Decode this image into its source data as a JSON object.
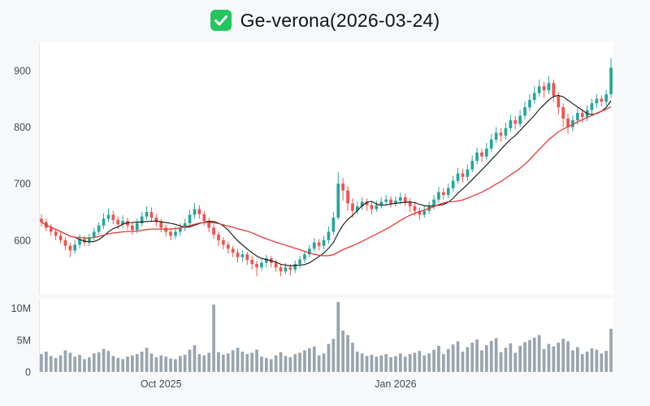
{
  "header": {
    "title": "Ge-verona(2026-03-24)",
    "check_color": "#22c55e",
    "check_mark_color": "#ffffff"
  },
  "chart_data": {
    "type": "candlestick",
    "title": "Ge-verona(2026-03-24)",
    "up_color": "#26a69a",
    "down_color": "#ef5350",
    "ma_short_color": "#111111",
    "ma_long_color": "#e53935",
    "ma_short_period": 8,
    "ma_long_period": 24,
    "volume_color": "#9aa4ae",
    "grid": false,
    "legend": "none",
    "y_axis": {
      "ticks": [
        600,
        700,
        800,
        900
      ],
      "range": [
        505,
        950
      ]
    },
    "volume_axis": {
      "max": 11.5,
      "unit": "M",
      "ticks": [
        {
          "value": 0,
          "label": "0"
        },
        {
          "value": 5,
          "label": "5M"
        },
        {
          "value": 10,
          "label": "10M"
        }
      ]
    },
    "x_axis": {
      "labels": [
        {
          "index": 25,
          "label": "Oct 2025"
        },
        {
          "index": 74,
          "label": "Jan 2026"
        }
      ]
    },
    "candles_format": [
      "open",
      "high",
      "low",
      "close",
      "volume_millions"
    ],
    "candles": [
      [
        638,
        646,
        624,
        632,
        2.8
      ],
      [
        632,
        638,
        616,
        622,
        3.2
      ],
      [
        622,
        628,
        608,
        615,
        2.5
      ],
      [
        615,
        620,
        600,
        608,
        2.2
      ],
      [
        608,
        614,
        594,
        600,
        2.6
      ],
      [
        600,
        606,
        582,
        590,
        3.4
      ],
      [
        590,
        596,
        570,
        582,
        3.0
      ],
      [
        582,
        600,
        576,
        592,
        2.4
      ],
      [
        592,
        610,
        586,
        602,
        2.7
      ],
      [
        602,
        608,
        590,
        596,
        2.0
      ],
      [
        596,
        612,
        590,
        605,
        2.3
      ],
      [
        605,
        622,
        600,
        615,
        2.9
      ],
      [
        615,
        632,
        610,
        626,
        3.1
      ],
      [
        626,
        648,
        620,
        638,
        3.6
      ],
      [
        638,
        656,
        632,
        645,
        3.3
      ],
      [
        645,
        652,
        628,
        636,
        2.5
      ],
      [
        636,
        642,
        620,
        628,
        2.2
      ],
      [
        628,
        644,
        622,
        634,
        2.0
      ],
      [
        634,
        640,
        618,
        626,
        2.4
      ],
      [
        626,
        632,
        610,
        618,
        2.6
      ],
      [
        618,
        638,
        612,
        630,
        2.8
      ],
      [
        630,
        650,
        624,
        642,
        3.2
      ],
      [
        642,
        660,
        636,
        650,
        3.8
      ],
      [
        650,
        658,
        632,
        640,
        2.9
      ],
      [
        640,
        646,
        624,
        632,
        2.3
      ],
      [
        632,
        638,
        614,
        622,
        2.6
      ],
      [
        622,
        628,
        606,
        615,
        2.4
      ],
      [
        615,
        622,
        600,
        608,
        2.1
      ],
      [
        608,
        624,
        602,
        615,
        2.0
      ],
      [
        615,
        630,
        608,
        622,
        2.5
      ],
      [
        622,
        638,
        616,
        630,
        2.7
      ],
      [
        630,
        654,
        624,
        645,
        3.5
      ],
      [
        645,
        666,
        638,
        655,
        4.2
      ],
      [
        655,
        662,
        638,
        646,
        2.8
      ],
      [
        646,
        652,
        626,
        634,
        2.6
      ],
      [
        634,
        640,
        614,
        622,
        3.0
      ],
      [
        622,
        628,
        602,
        610,
        10.6
      ],
      [
        610,
        616,
        590,
        600,
        3.1
      ],
      [
        600,
        606,
        584,
        592,
        2.7
      ],
      [
        592,
        598,
        576,
        585,
        2.9
      ],
      [
        585,
        590,
        570,
        578,
        3.4
      ],
      [
        578,
        584,
        560,
        570,
        3.8
      ],
      [
        570,
        582,
        562,
        575,
        3.2
      ],
      [
        575,
        580,
        556,
        565,
        2.8
      ],
      [
        565,
        572,
        548,
        558,
        3.0
      ],
      [
        558,
        564,
        536,
        552,
        3.5
      ],
      [
        552,
        566,
        546,
        560,
        2.4
      ],
      [
        560,
        574,
        552,
        568,
        2.2
      ],
      [
        568,
        572,
        552,
        560,
        2.0
      ],
      [
        560,
        566,
        544,
        552,
        2.6
      ],
      [
        552,
        558,
        536,
        545,
        3.1
      ],
      [
        545,
        560,
        540,
        552,
        2.5
      ],
      [
        552,
        558,
        538,
        548,
        2.3
      ],
      [
        548,
        564,
        542,
        558,
        2.8
      ],
      [
        558,
        572,
        550,
        566,
        3.0
      ],
      [
        566,
        582,
        560,
        575,
        3.4
      ],
      [
        575,
        592,
        570,
        585,
        3.7
      ],
      [
        585,
        604,
        580,
        596,
        4.0
      ],
      [
        596,
        602,
        582,
        590,
        2.6
      ],
      [
        590,
        608,
        584,
        600,
        2.9
      ],
      [
        600,
        624,
        594,
        615,
        4.4
      ],
      [
        615,
        650,
        610,
        640,
        5.2
      ],
      [
        640,
        720,
        636,
        700,
        11.0
      ],
      [
        700,
        710,
        670,
        688,
        6.5
      ],
      [
        688,
        696,
        652,
        665,
        5.8
      ],
      [
        665,
        674,
        640,
        652,
        4.6
      ],
      [
        652,
        668,
        646,
        660,
        3.2
      ],
      [
        660,
        676,
        654,
        668,
        2.9
      ],
      [
        668,
        674,
        652,
        662,
        2.5
      ],
      [
        662,
        668,
        646,
        655,
        2.7
      ],
      [
        655,
        670,
        650,
        662,
        2.4
      ],
      [
        662,
        676,
        656,
        668,
        2.6
      ],
      [
        668,
        680,
        662,
        672,
        2.8
      ],
      [
        672,
        678,
        658,
        665,
        2.3
      ],
      [
        665,
        678,
        660,
        670,
        2.5
      ],
      [
        670,
        684,
        664,
        676,
        2.9
      ],
      [
        676,
        682,
        660,
        668,
        2.4
      ],
      [
        668,
        674,
        650,
        660,
        2.8
      ],
      [
        660,
        666,
        644,
        652,
        3.0
      ],
      [
        652,
        658,
        636,
        645,
        3.3
      ],
      [
        645,
        660,
        640,
        652,
        2.6
      ],
      [
        652,
        668,
        646,
        660,
        2.9
      ],
      [
        660,
        680,
        654,
        672,
        3.5
      ],
      [
        672,
        694,
        666,
        685,
        4.1
      ],
      [
        685,
        692,
        672,
        680,
        2.8
      ],
      [
        680,
        700,
        674,
        692,
        3.6
      ],
      [
        692,
        714,
        686,
        705,
        4.3
      ],
      [
        705,
        728,
        700,
        718,
        4.8
      ],
      [
        718,
        726,
        702,
        712,
        3.2
      ],
      [
        712,
        734,
        706,
        725,
        3.9
      ],
      [
        725,
        750,
        720,
        740,
        4.6
      ],
      [
        740,
        764,
        734,
        755,
        5.1
      ],
      [
        755,
        762,
        738,
        748,
        3.4
      ],
      [
        748,
        772,
        742,
        762,
        4.2
      ],
      [
        762,
        788,
        756,
        778,
        4.9
      ],
      [
        778,
        800,
        772,
        790,
        5.3
      ],
      [
        790,
        798,
        774,
        785,
        3.1
      ],
      [
        785,
        808,
        778,
        798,
        3.8
      ],
      [
        798,
        822,
        792,
        812,
        4.5
      ],
      [
        812,
        820,
        796,
        806,
        3.0
      ],
      [
        806,
        830,
        800,
        820,
        4.1
      ],
      [
        820,
        845,
        814,
        835,
        4.7
      ],
      [
        835,
        858,
        828,
        848,
        5.0
      ],
      [
        848,
        872,
        842,
        860,
        5.4
      ],
      [
        860,
        884,
        854,
        872,
        5.8
      ],
      [
        872,
        880,
        852,
        865,
        3.6
      ],
      [
        865,
        890,
        858,
        878,
        4.4
      ],
      [
        878,
        884,
        845,
        855,
        4.0
      ],
      [
        855,
        862,
        822,
        835,
        4.6
      ],
      [
        835,
        842,
        800,
        815,
        5.2
      ],
      [
        815,
        824,
        788,
        800,
        4.8
      ],
      [
        800,
        820,
        792,
        812,
        3.4
      ],
      [
        812,
        834,
        804,
        825,
        3.9
      ],
      [
        825,
        832,
        808,
        818,
        2.8
      ],
      [
        818,
        838,
        810,
        830,
        3.2
      ],
      [
        830,
        850,
        822,
        842,
        3.7
      ],
      [
        842,
        858,
        834,
        850,
        3.5
      ],
      [
        850,
        856,
        836,
        845,
        2.9
      ],
      [
        845,
        866,
        838,
        858,
        3.3
      ],
      [
        858,
        922,
        852,
        905,
        6.8
      ]
    ]
  }
}
